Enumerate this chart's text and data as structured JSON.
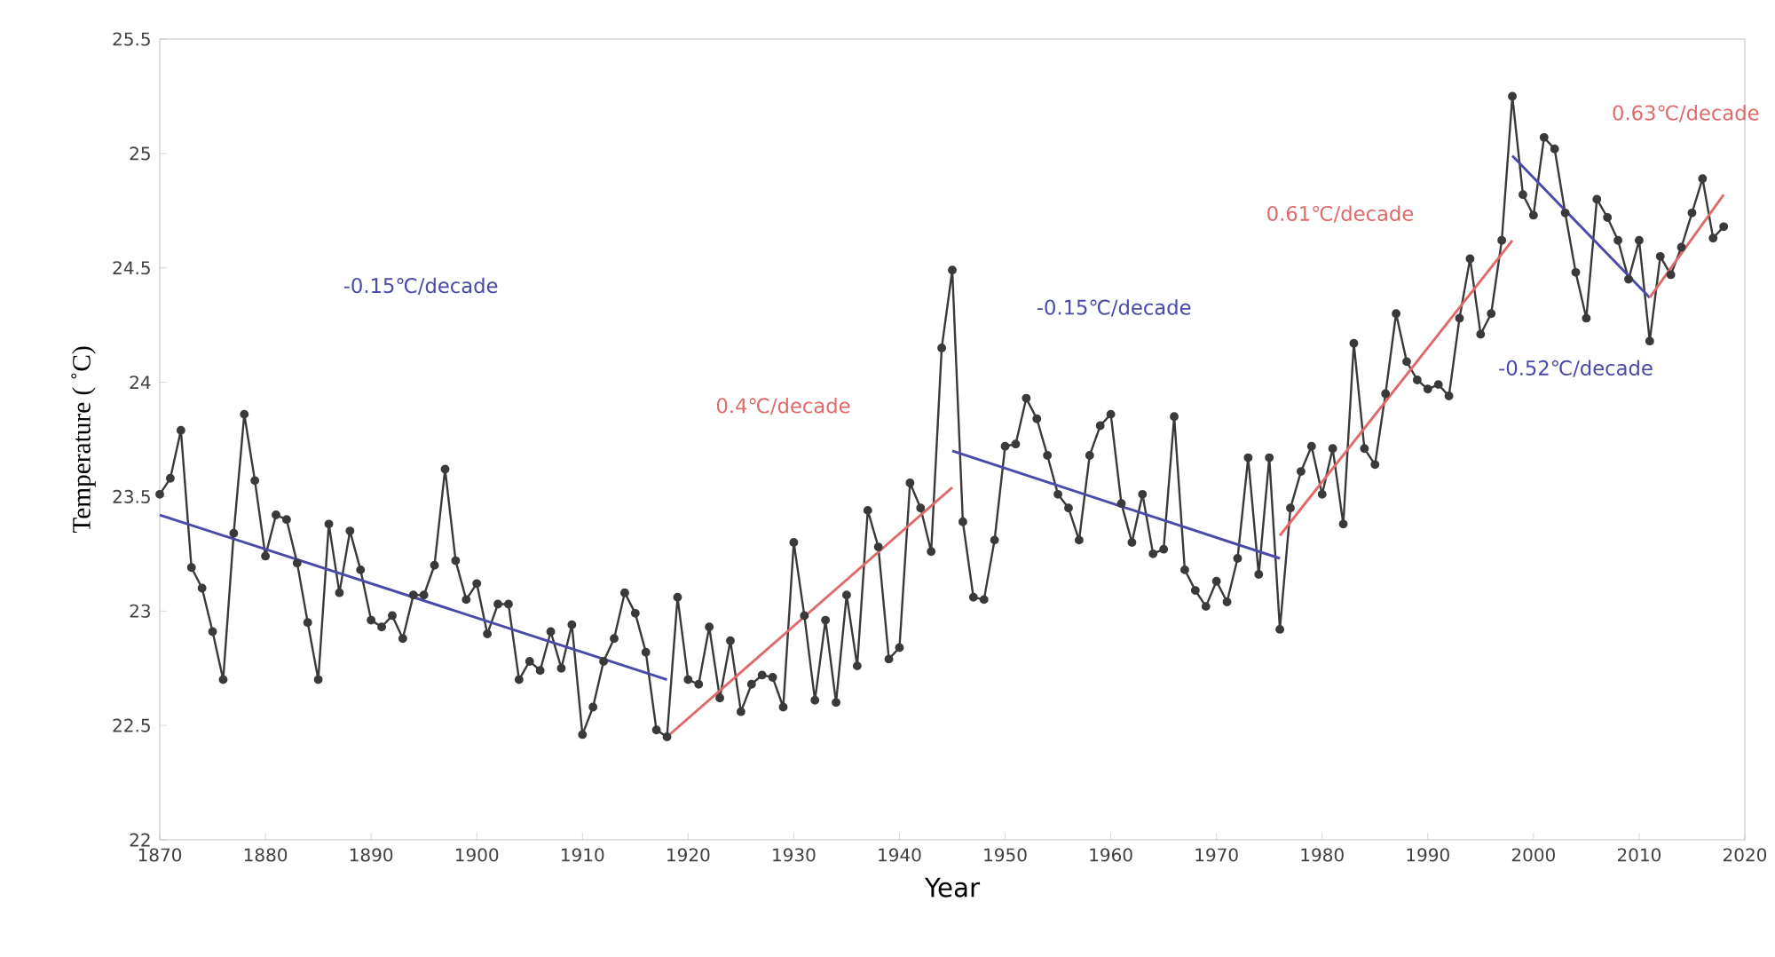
{
  "chart_data": {
    "type": "line",
    "xlabel": "Year",
    "ylabel": "Temperature ( ˚C)",
    "xlim": [
      1870,
      2020
    ],
    "xticks": [
      1870,
      1880,
      1890,
      1900,
      1910,
      1920,
      1930,
      1940,
      1950,
      1960,
      1970,
      1980,
      1990,
      2000,
      2010,
      2020
    ],
    "ylim": [
      22,
      25.5
    ],
    "yticks": [
      22,
      22.5,
      23,
      23.5,
      24,
      24.5,
      25,
      25.5
    ],
    "grid": false,
    "marker": "circle",
    "x": [
      1870,
      1871,
      1872,
      1873,
      1874,
      1875,
      1876,
      1877,
      1878,
      1879,
      1880,
      1881,
      1882,
      1883,
      1884,
      1885,
      1886,
      1887,
      1888,
      1889,
      1890,
      1891,
      1892,
      1893,
      1894,
      1895,
      1896,
      1897,
      1898,
      1899,
      1900,
      1901,
      1902,
      1903,
      1904,
      1905,
      1906,
      1907,
      1908,
      1909,
      1910,
      1911,
      1912,
      1913,
      1914,
      1915,
      1916,
      1917,
      1918,
      1919,
      1920,
      1921,
      1922,
      1923,
      1924,
      1925,
      1926,
      1927,
      1928,
      1929,
      1930,
      1931,
      1932,
      1933,
      1934,
      1935,
      1936,
      1937,
      1938,
      1939,
      1940,
      1941,
      1942,
      1943,
      1944,
      1945,
      1946,
      1947,
      1948,
      1949,
      1950,
      1951,
      1952,
      1953,
      1954,
      1955,
      1956,
      1957,
      1958,
      1959,
      1960,
      1961,
      1962,
      1963,
      1964,
      1965,
      1966,
      1967,
      1968,
      1969,
      1970,
      1971,
      1972,
      1973,
      1974,
      1975,
      1976,
      1977,
      1978,
      1979,
      1980,
      1981,
      1982,
      1983,
      1984,
      1985,
      1986,
      1987,
      1988,
      1989,
      1990,
      1991,
      1992,
      1993,
      1994,
      1995,
      1996,
      1997,
      1998,
      1999,
      2000,
      2001,
      2002,
      2003,
      2004,
      2005,
      2006,
      2007,
      2008,
      2009,
      2010,
      2011,
      2012,
      2013,
      2014,
      2015,
      2016,
      2017,
      2018
    ],
    "series": [
      {
        "color": "#3a3a3a",
        "values": [
          23.51,
          23.58,
          23.79,
          23.19,
          23.1,
          22.91,
          22.7,
          23.34,
          23.86,
          23.57,
          23.24,
          23.42,
          23.4,
          23.21,
          22.95,
          22.7,
          23.38,
          23.08,
          23.35,
          23.18,
          22.96,
          22.93,
          22.98,
          22.88,
          23.07,
          23.07,
          23.2,
          23.62,
          23.22,
          23.05,
          23.12,
          22.9,
          23.03,
          23.03,
          22.7,
          22.78,
          22.74,
          22.91,
          22.75,
          22.94,
          22.46,
          22.58,
          22.78,
          22.88,
          23.08,
          22.99,
          22.82,
          22.48,
          22.45,
          23.06,
          22.7,
          22.68,
          22.93,
          22.62,
          22.87,
          22.56,
          22.68,
          22.72,
          22.71,
          22.58,
          23.3,
          22.98,
          22.61,
          22.96,
          22.6,
          23.07,
          22.76,
          23.44,
          23.28,
          22.79,
          22.84,
          23.56,
          23.45,
          23.26,
          24.15,
          24.49,
          23.39,
          23.06,
          23.05,
          23.31,
          23.72,
          23.73,
          23.93,
          23.84,
          23.68,
          23.51,
          23.45,
          23.31,
          23.68,
          23.81,
          23.86,
          23.47,
          23.3,
          23.51,
          23.25,
          23.27,
          23.85,
          23.18,
          23.09,
          23.02,
          23.13,
          23.04,
          23.23,
          23.67,
          23.16,
          23.67,
          22.92,
          23.45,
          23.61,
          23.72,
          23.51,
          23.71,
          23.38,
          24.17,
          23.71,
          23.64,
          23.95,
          24.3,
          24.09,
          24.01,
          23.97,
          23.99,
          23.94,
          24.28,
          24.54,
          24.21,
          24.3,
          24.62,
          25.25,
          24.82,
          24.73,
          25.07,
          25.02,
          24.74,
          24.48,
          24.28,
          24.8,
          24.72,
          24.62,
          24.45,
          24.62,
          24.18,
          24.55,
          24.47,
          24.59,
          24.74,
          24.89,
          24.63,
          24.68
        ]
      },
      {
        "type": "line",
        "marker": "none",
        "color": "#4a4aa8",
        "x": [
          1870,
          1918
        ],
        "values": [
          23.42,
          22.7
        ]
      },
      {
        "type": "line",
        "marker": "none",
        "color": "#e06a6a",
        "x": [
          1918,
          1945
        ],
        "values": [
          22.45,
          23.54
        ]
      },
      {
        "type": "line",
        "marker": "none",
        "color": "#4a4aa8",
        "x": [
          1945,
          1976
        ],
        "values": [
          23.7,
          23.23
        ]
      },
      {
        "type": "line",
        "marker": "none",
        "color": "#e06a6a",
        "x": [
          1976,
          1998
        ],
        "values": [
          23.33,
          24.62
        ]
      },
      {
        "type": "line",
        "marker": "none",
        "color": "#4a4aa8",
        "x": [
          1998,
          2011
        ],
        "values": [
          24.99,
          24.37
        ]
      },
      {
        "type": "line",
        "marker": "none",
        "color": "#e06a6a",
        "x": [
          2011,
          2018
        ],
        "values": [
          24.37,
          24.82
        ]
      }
    ],
    "annotations": [
      "-0.15℃/decade",
      "0.4℃/decade",
      "-0.15℃/decade",
      "0.61℃/decade",
      "-0.52℃/decade",
      "0.63℃/decade"
    ]
  }
}
